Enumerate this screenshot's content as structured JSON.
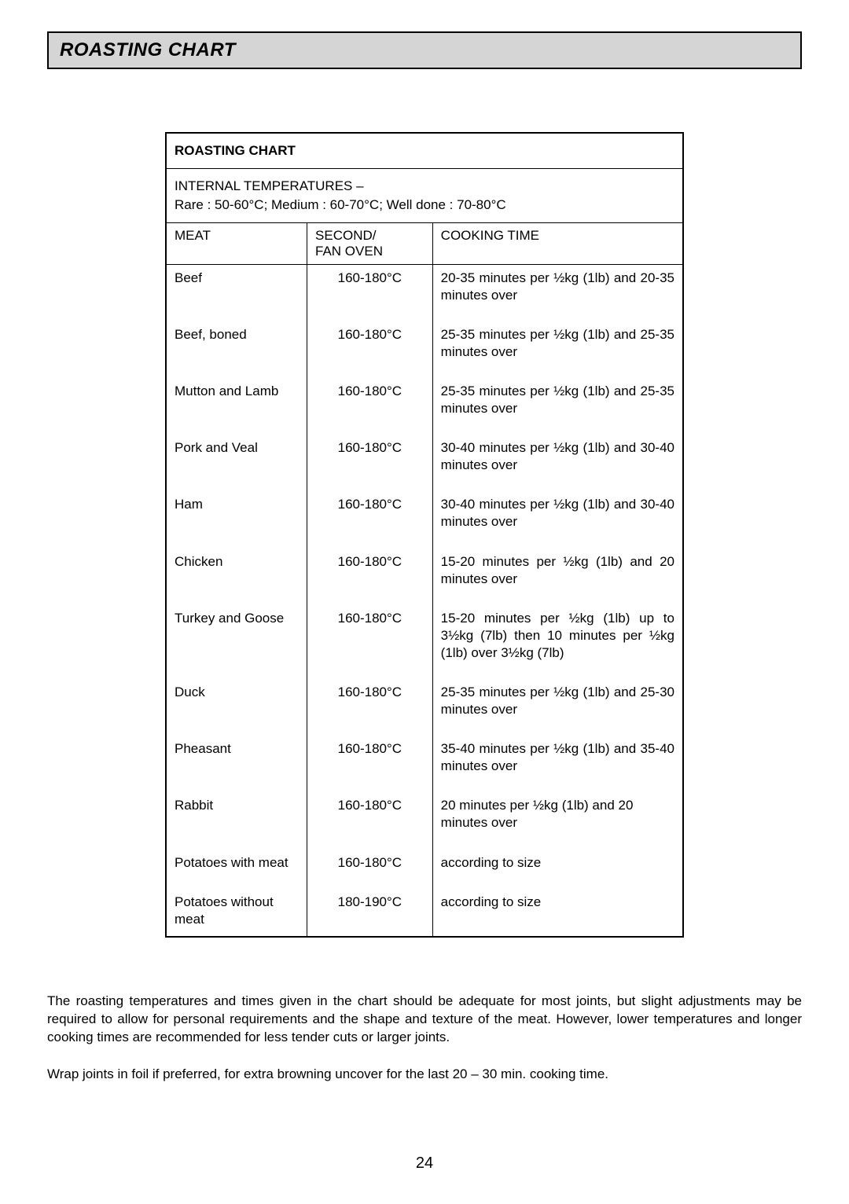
{
  "header": {
    "title": "ROASTING CHART"
  },
  "chart": {
    "title": "ROASTING CHART",
    "internal_temp_label": "INTERNAL TEMPERATURES –",
    "internal_temp_values": "Rare : 50-60°C; Medium : 60-70°C; Well done : 70-80°C",
    "col_meat": "MEAT",
    "col_temp_line1": "SECOND/",
    "col_temp_line2": "FAN OVEN",
    "col_time": "COOKING TIME",
    "rows": [
      {
        "meat": "Beef",
        "temp": "160-180°C",
        "time": "20-35 minutes per ½kg (1lb) and 20-35 minutes over"
      },
      {
        "meat": "Beef, boned",
        "temp": "160-180°C",
        "time": "25-35 minutes per ½kg (1lb) and 25-35 minutes over"
      },
      {
        "meat": "Mutton and Lamb",
        "temp": "160-180°C",
        "time": "25-35 minutes per ½kg (1lb) and 25-35 minutes over"
      },
      {
        "meat": "Pork and Veal",
        "temp": "160-180°C",
        "time": "30-40 minutes per ½kg (1lb) and 30-40 minutes over"
      },
      {
        "meat": "Ham",
        "temp": "160-180°C",
        "time": "30-40 minutes per ½kg (1lb) and 30-40 minutes over"
      },
      {
        "meat": "Chicken",
        "temp": "160-180°C",
        "time": "15-20 minutes per ½kg (1lb) and 20 minutes over"
      },
      {
        "meat": "Turkey and Goose",
        "temp": "160-180°C",
        "time": "15-20 minutes per ½kg (1lb) up to 3½kg (7lb) then 10 minutes per ½kg (1lb) over 3½kg (7lb)"
      },
      {
        "meat": "Duck",
        "temp": "160-180°C",
        "time": "25-35 minutes per ½kg (1lb) and 25-30 minutes over"
      },
      {
        "meat": "Pheasant",
        "temp": "160-180°C",
        "time": "35-40 minutes per ½kg (1lb) and 35-40 minutes over"
      },
      {
        "meat": "Rabbit",
        "temp": "160-180°C",
        "time": "20 minutes per ½kg (1lb) and 20 minutes over"
      },
      {
        "meat": "Potatoes with meat",
        "temp": "160-180°C",
        "time": "according to size"
      },
      {
        "meat": "Potatoes without meat",
        "temp": "180-190°C",
        "time": "according to size"
      }
    ]
  },
  "notes": {
    "para1": "The roasting temperatures and times given in the chart should be adequate for most joints, but slight adjustments may be required to allow for personal requirements and the shape and texture of the meat.  However, lower temperatures and longer cooking times are recommended for less tender cuts or larger joints.",
    "para2": "Wrap joints in foil if preferred, for extra browning uncover for the last 20 – 30 min. cooking time."
  },
  "page_number": "24"
}
